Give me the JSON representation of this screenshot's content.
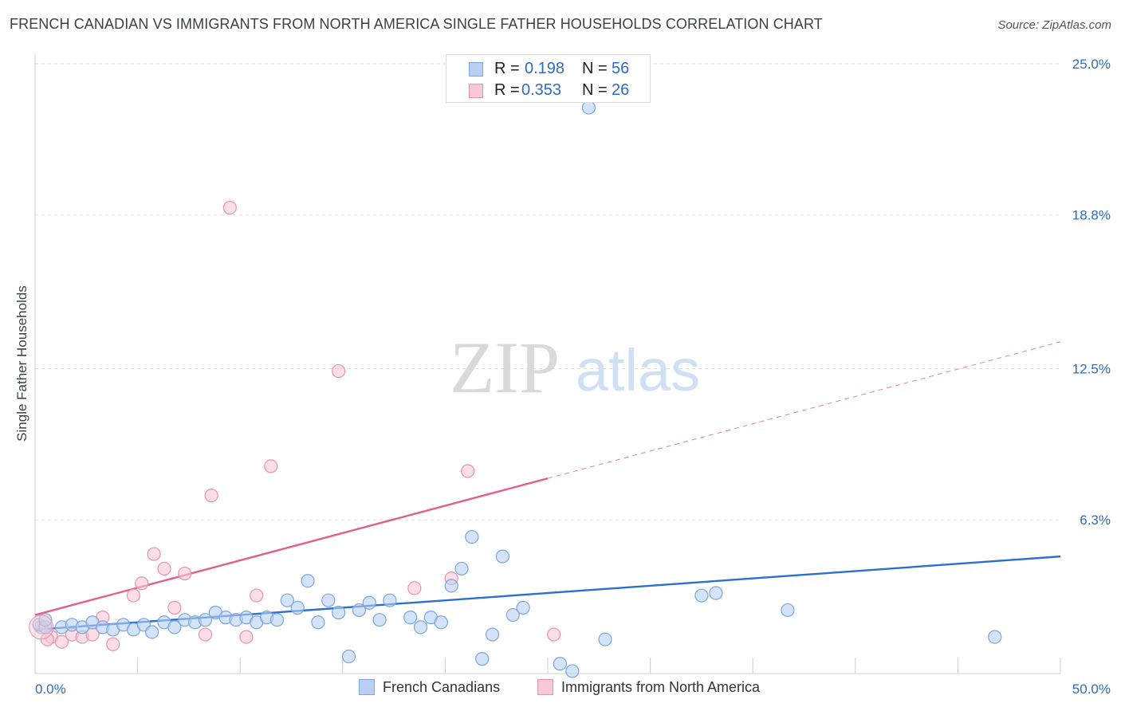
{
  "title": "FRENCH CANADIAN VS IMMIGRANTS FROM NORTH AMERICA SINGLE FATHER HOUSEHOLDS CORRELATION CHART",
  "source": "Source: ZipAtlas.com",
  "watermark": {
    "zip": "ZIP",
    "atlas": "atlas"
  },
  "legend": {
    "rows": [
      {
        "r_label": "R =",
        "r_value": "0.198",
        "n_label": "N =",
        "n_value": "56"
      },
      {
        "r_label": "R =",
        "r_value": "0.353",
        "n_label": "N =",
        "n_value": "26"
      }
    ]
  },
  "colors": {
    "blue_fill": "#b7d0f3",
    "blue_stroke": "#7aa6dd",
    "blue_line": "#2b6fcf",
    "pink_fill": "#f8c8d6",
    "pink_stroke": "#e891ab",
    "pink_line": "#e0608d",
    "axis_text": "#2b6cc4",
    "grid": "#dddddd"
  },
  "chart_data": {
    "type": "scatter",
    "title": "FRENCH CANADIAN VS IMMIGRANTS FROM NORTH AMERICA SINGLE FATHER HOUSEHOLDS CORRELATION CHART",
    "xlabel": "",
    "ylabel": "Single Father Households",
    "xlim": [
      0,
      50
    ],
    "ylim": [
      0,
      25.0
    ],
    "x_tick_labels": [
      "0.0%",
      "50.0%"
    ],
    "y_ticks": [
      6.3,
      12.5,
      18.8,
      25.0
    ],
    "y_tick_labels": [
      "6.3%",
      "12.5%",
      "18.8%",
      "25.0%"
    ],
    "grid": true,
    "legend_position": "bottom",
    "series": [
      {
        "name": "French Canadians",
        "r": 0.198,
        "n": 56,
        "trend": {
          "x": [
            0,
            50
          ],
          "y": [
            1.8,
            4.8
          ],
          "style": "solid"
        },
        "points": [
          [
            0.2,
            2.0
          ],
          [
            0.5,
            1.9
          ],
          [
            1.3,
            1.9
          ],
          [
            1.8,
            2.0
          ],
          [
            2.3,
            1.9
          ],
          [
            2.8,
            2.1
          ],
          [
            3.3,
            1.9
          ],
          [
            3.8,
            1.8
          ],
          [
            4.3,
            2.0
          ],
          [
            4.8,
            1.8
          ],
          [
            5.3,
            2.0
          ],
          [
            5.7,
            1.7
          ],
          [
            6.3,
            2.1
          ],
          [
            6.8,
            1.9
          ],
          [
            7.3,
            2.2
          ],
          [
            7.8,
            2.1
          ],
          [
            8.3,
            2.2
          ],
          [
            8.8,
            2.5
          ],
          [
            9.3,
            2.3
          ],
          [
            9.8,
            2.2
          ],
          [
            10.3,
            2.3
          ],
          [
            10.8,
            2.1
          ],
          [
            11.3,
            2.3
          ],
          [
            11.8,
            2.2
          ],
          [
            12.3,
            3.0
          ],
          [
            12.8,
            2.7
          ],
          [
            13.3,
            3.8
          ],
          [
            13.8,
            2.1
          ],
          [
            14.3,
            3.0
          ],
          [
            14.8,
            2.5
          ],
          [
            15.3,
            0.7
          ],
          [
            15.8,
            2.6
          ],
          [
            16.3,
            2.9
          ],
          [
            16.8,
            2.2
          ],
          [
            17.3,
            3.0
          ],
          [
            18.3,
            2.3
          ],
          [
            18.8,
            1.9
          ],
          [
            19.3,
            2.3
          ],
          [
            19.8,
            2.1
          ],
          [
            20.3,
            3.6
          ],
          [
            20.8,
            4.3
          ],
          [
            21.3,
            5.6
          ],
          [
            21.8,
            0.6
          ],
          [
            22.3,
            1.6
          ],
          [
            22.8,
            4.8
          ],
          [
            23.3,
            2.4
          ],
          [
            23.8,
            2.7
          ],
          [
            25.6,
            0.4
          ],
          [
            26.2,
            0.1
          ],
          [
            27.8,
            1.4
          ],
          [
            32.5,
            3.2
          ],
          [
            33.2,
            3.3
          ],
          [
            36.7,
            2.6
          ],
          [
            46.8,
            1.5
          ],
          [
            27.0,
            23.2
          ],
          [
            0.5,
            2.2
          ]
        ]
      },
      {
        "name": "Immigrants from North America",
        "r": 0.353,
        "n": 26,
        "trend": {
          "x": [
            0,
            25
          ],
          "y": [
            2.4,
            8.0
          ],
          "style": "solid",
          "extension": {
            "x": [
              25,
              50
            ],
            "y": [
              8.0,
              13.6
            ],
            "style": "dashed"
          }
        },
        "points": [
          [
            0.3,
            1.9
          ],
          [
            0.8,
            1.5
          ],
          [
            1.3,
            1.3
          ],
          [
            1.8,
            1.6
          ],
          [
            2.3,
            1.5
          ],
          [
            2.8,
            1.6
          ],
          [
            3.8,
            1.2
          ],
          [
            3.3,
            2.3
          ],
          [
            4.8,
            3.2
          ],
          [
            5.2,
            3.7
          ],
          [
            5.8,
            4.9
          ],
          [
            6.8,
            2.7
          ],
          [
            7.3,
            4.1
          ],
          [
            8.3,
            1.6
          ],
          [
            8.6,
            7.3
          ],
          [
            9.5,
            19.1
          ],
          [
            10.3,
            1.5
          ],
          [
            10.8,
            3.2
          ],
          [
            11.5,
            8.5
          ],
          [
            14.8,
            12.4
          ],
          [
            18.5,
            3.5
          ],
          [
            20.3,
            3.9
          ],
          [
            21.1,
            8.3
          ],
          [
            25.3,
            1.6
          ],
          [
            6.3,
            4.3
          ],
          [
            0.6,
            1.4
          ]
        ]
      }
    ]
  }
}
